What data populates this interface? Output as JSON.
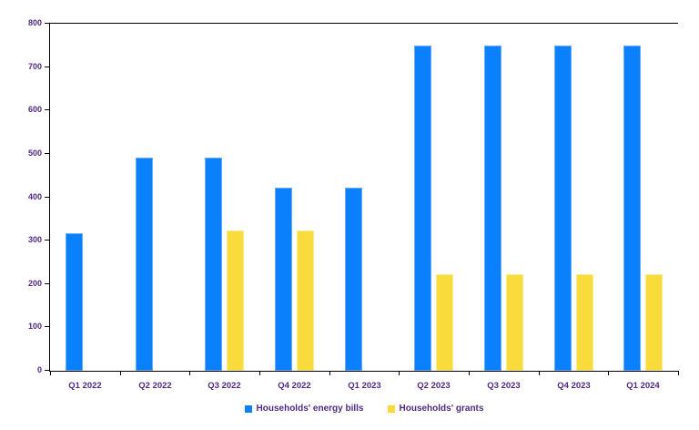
{
  "chart_data": {
    "type": "bar",
    "title": "",
    "xlabel": "",
    "ylabel": "",
    "categories": [
      "Q1 2022",
      "Q2 2022",
      "Q3 2022",
      "Q4 2022",
      "Q1 2023",
      "Q2 2023",
      "Q3 2023",
      "Q4 2023",
      "Q1 2024"
    ],
    "series": [
      {
        "name": "Households' energy bills",
        "color": "#0A80FC",
        "border_color": "#66ADFD",
        "values": [
          318,
          492,
          492,
          423,
          423,
          750,
          750,
          750,
          750
        ]
      },
      {
        "name": "Households' grants",
        "color": "#F9DC3C",
        "border_color": "#FBEC8A",
        "values": [
          null,
          null,
          323,
          323,
          null,
          223,
          223,
          223,
          223
        ]
      }
    ],
    "ylim": [
      0,
      800
    ],
    "ytick_step": 100,
    "ytick_labels": [
      "0",
      "100",
      "200",
      "300",
      "400",
      "500",
      "600",
      "700",
      "800"
    ],
    "grid": false,
    "legend_position": "bottom"
  },
  "style": {
    "background": "#FFFFFF",
    "axis_color": "#000000",
    "label_color": "#4F2A85"
  }
}
